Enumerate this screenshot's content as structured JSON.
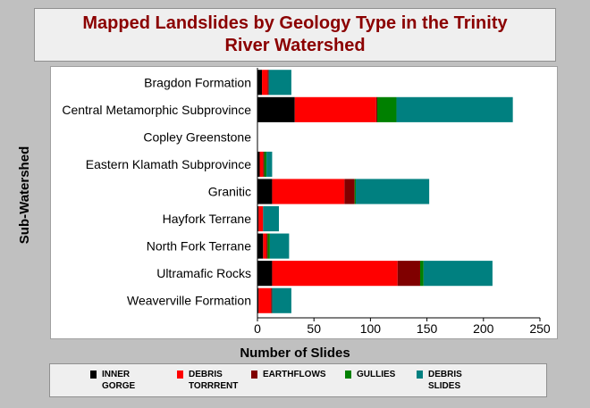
{
  "chart_data": {
    "type": "bar",
    "orientation": "horizontal",
    "stacked": true,
    "title_lines": [
      "Mapped Landslides by Geology Type in the Trinity",
      "River Watershed"
    ],
    "xlabel": "Number of Slides",
    "ylabel": "Sub-Watershed",
    "xlim": [
      0,
      250
    ],
    "xticks": [
      0,
      50,
      100,
      150,
      200,
      250
    ],
    "grid": false,
    "legend_position": "bottom",
    "categories": [
      "Bragdon Formation",
      "Central Metamorphic Subprovince",
      "Copley Greenstone",
      "Eastern Klamath Subprovince",
      "Granitic",
      "Hayfork Terrane",
      "North Fork Terrane",
      "Ultramafic Rocks",
      "Weaverville Formation"
    ],
    "series": [
      {
        "name": "INNER GORGE",
        "color": "#000000",
        "values": [
          4,
          33,
          0,
          2,
          13,
          1,
          5,
          13,
          1
        ]
      },
      {
        "name": "DEBRIS TORRRENT",
        "color": "#ff0000",
        "values": [
          5,
          72,
          0,
          3,
          64,
          4,
          3,
          111,
          11
        ]
      },
      {
        "name": "EARTHFLOWS",
        "color": "#800000",
        "values": [
          1,
          1,
          0,
          1,
          9,
          0,
          1,
          20,
          1
        ]
      },
      {
        "name": "GULLIES",
        "color": "#008000",
        "values": [
          0,
          17,
          0,
          2,
          1,
          0,
          2,
          3,
          0
        ]
      },
      {
        "name": "DEBRIS SLIDES",
        "color": "#008080",
        "values": [
          20,
          103,
          0,
          5,
          65,
          14,
          17,
          61,
          17
        ]
      }
    ]
  }
}
